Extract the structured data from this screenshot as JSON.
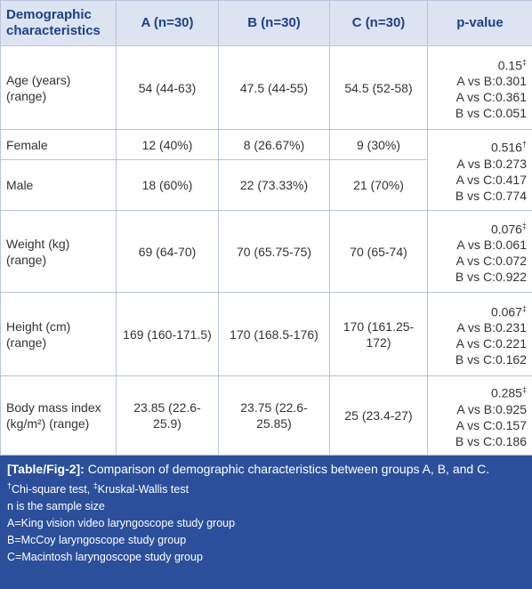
{
  "table": {
    "header": [
      "Demographic characteristics",
      "A (n=30)",
      "B (n=30)",
      "C (n=30)",
      "p-value"
    ],
    "rows": [
      {
        "label": "Age (years) (range)",
        "cells": [
          "54 (44-63)",
          "47.5 (44-55)",
          "54.5 (52-58)"
        ],
        "p": {
          "value": "0.15",
          "mark": "‡",
          "comparisons": [
            "A vs B:0.301",
            "A vs C:0.361",
            "B vs C:0.051"
          ]
        }
      },
      {
        "label": "Female",
        "cells": [
          "12 (40%)",
          "8 (26.67%)",
          "9 (30%)"
        ],
        "p": {
          "value": "0.516",
          "mark": "†",
          "comparisons": [
            "A vs B:0.273",
            "A vs C:0.417",
            "B vs C:0.774"
          ]
        }
      },
      {
        "label": "Male",
        "cells": [
          "18 (60%)",
          "22 (73.33%)",
          "21 (70%)"
        ]
      },
      {
        "label": "Weight (kg) (range)",
        "cells": [
          "69 (64-70)",
          "70 (65.75-75)",
          "70 (65-74)"
        ],
        "p": {
          "value": "0.076",
          "mark": "‡",
          "comparisons": [
            "A vs B:0.061",
            "A vs C:0.072",
            "B vs C:0.922"
          ]
        }
      },
      {
        "label": "Height (cm) (range)",
        "cells": [
          "169 (160-171.5)",
          "170 (168.5-176)",
          "170 (161.25-172)"
        ],
        "p": {
          "value": "0.067",
          "mark": "‡",
          "comparisons": [
            "A vs B:0.231",
            "A vs C:0.221",
            "B vs C:0.162"
          ]
        }
      },
      {
        "label": "Body mass index (kg/m²) (range)",
        "cells": [
          "23.85 (22.6-25.9)",
          "23.75 (22.6-25.85)",
          "25 (23.4-27)"
        ],
        "p": {
          "value": "0.285",
          "mark": "‡",
          "comparisons": [
            "A vs B:0.925",
            "A vs C:0.157",
            "B vs C:0.186"
          ]
        }
      }
    ]
  },
  "caption": {
    "tag": "[Table/Fig-2]:",
    "text": "Comparison of demographic characteristics between groups A, B, and C.",
    "footnotes": [
      {
        "mark": "†",
        "text": "Chi-square test,"
      },
      {
        "mark": "‡",
        "text": "Kruskal-Wallis test"
      }
    ],
    "notes": [
      "n is the sample size",
      "A=King vision video laryngoscope study group",
      "B=McCoy laryngoscope study group",
      "C=Macintosh laryngoscope study group"
    ]
  }
}
